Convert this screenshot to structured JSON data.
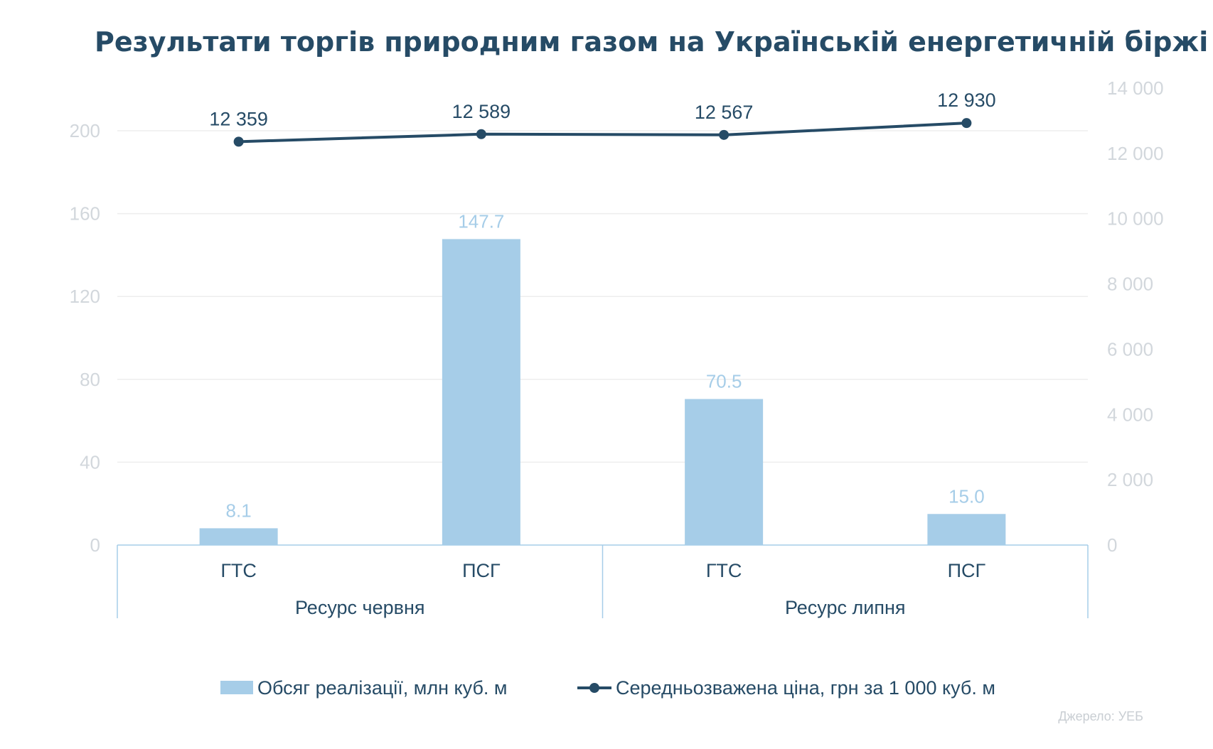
{
  "chart_data": {
    "type": "bar",
    "title": "Результати торгів природним газом на Українській енергетичній біржі",
    "categories": [
      "ГТС",
      "ПСГ",
      "ГТС",
      "ПСГ"
    ],
    "groups": [
      {
        "label": "Ресурс червня",
        "categories": [
          "ГТС",
          "ПСГ"
        ]
      },
      {
        "label": "Ресурс липня",
        "categories": [
          "ГТС",
          "ПСГ"
        ]
      }
    ],
    "series": [
      {
        "name": "Обсяг реалізації, млн куб. м",
        "type": "bar",
        "axis": "left",
        "color": "#a6cde8",
        "values": [
          8.1,
          147.7,
          70.5,
          15.0
        ],
        "labels": [
          "8.1",
          "147.7",
          "70.5",
          "15.0"
        ]
      },
      {
        "name": "Середньозважена ціна, грн за 1 000 куб. м",
        "type": "line",
        "axis": "right",
        "color": "#264b66",
        "values": [
          12359,
          12589,
          12567,
          12930
        ],
        "labels": [
          "12 359",
          "12 589",
          "12 567",
          "12 930"
        ]
      }
    ],
    "y_left": {
      "min": 0,
      "max": 200,
      "ticks": [
        0,
        40,
        80,
        120,
        160,
        200
      ]
    },
    "y_right": {
      "min": 0,
      "max": 14000,
      "ticks": [
        "0",
        "2 000",
        "4 000",
        "6 000",
        "8 000",
        "10 000",
        "12 000",
        "14 000"
      ]
    },
    "grid": true,
    "legend_position": "bottom",
    "source": "Джерело: УЕБ"
  }
}
